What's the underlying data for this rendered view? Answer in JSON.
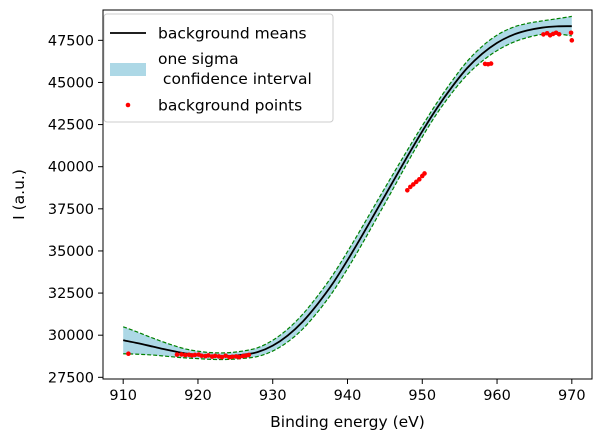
{
  "chart_data": {
    "type": "line",
    "title": "",
    "xlabel": "Binding energy (eV)",
    "ylabel": "I (a.u.)",
    "xlim": [
      907.3,
      972.7
    ],
    "ylim": [
      27400,
      49300
    ],
    "xticks": [
      910,
      920,
      930,
      940,
      950,
      960,
      970
    ],
    "yticks": [
      27500,
      30000,
      32500,
      35000,
      37500,
      40000,
      42500,
      45000,
      47500
    ],
    "grid": false,
    "legend_position": "top-left",
    "legend": {
      "mean_label": "background means",
      "band_label_line1": "one sigma",
      "band_label_line2": " confidence interval",
      "points_label": "background points"
    },
    "colors": {
      "mean": "#000000",
      "band": "#add8e6",
      "band_edge": "#008000",
      "points": "#ff0000"
    },
    "series": [
      {
        "name": "background means",
        "x": [
          910,
          912,
          914,
          916,
          918,
          920,
          922,
          924,
          926,
          928,
          930,
          932,
          934,
          936,
          938,
          940,
          942,
          944,
          946,
          948,
          950,
          952,
          954,
          956,
          958,
          960,
          962,
          964,
          966,
          968,
          970
        ],
        "values": [
          29700,
          29520,
          29320,
          29120,
          28940,
          28830,
          28760,
          28760,
          28840,
          29000,
          29380,
          29980,
          30800,
          31850,
          33050,
          34450,
          35950,
          37500,
          39050,
          40600,
          42100,
          43500,
          44750,
          45850,
          46700,
          47350,
          47800,
          48080,
          48250,
          48330,
          48340
        ]
      },
      {
        "name": "one sigma confidence interval",
        "x": [
          910,
          912,
          914,
          916,
          918,
          920,
          922,
          924,
          926,
          928,
          930,
          932,
          934,
          936,
          938,
          940,
          942,
          944,
          946,
          948,
          950,
          952,
          954,
          956,
          958,
          960,
          962,
          964,
          966,
          968,
          970
        ],
        "sigma": [
          800,
          650,
          500,
          380,
          280,
          220,
          200,
          200,
          220,
          260,
          320,
          380,
          440,
          480,
          500,
          510,
          500,
          480,
          440,
          380,
          330,
          320,
          350,
          400,
          440,
          460,
          450,
          420,
          400,
          450,
          580
        ]
      },
      {
        "name": "background points",
        "x": [
          910.7,
          917.2,
          917.8,
          918.3,
          918.8,
          919.2,
          919.6,
          920.1,
          920.5,
          921.0,
          921.4,
          921.9,
          922.3,
          922.8,
          923.2,
          923.7,
          924.2,
          924.6,
          925.1,
          925.5,
          926.0,
          926.4,
          926.8,
          948.0,
          948.4,
          948.8,
          949.2,
          949.6,
          950.0,
          950.3,
          958.4,
          958.8,
          959.2,
          966.2,
          966.7,
          967.1,
          967.5,
          967.9,
          968.3,
          969.9,
          970.0
        ],
        "values": [
          28900,
          28850,
          28860,
          28820,
          28840,
          28800,
          28830,
          28850,
          28780,
          28760,
          28800,
          28730,
          28770,
          28740,
          28700,
          28780,
          28690,
          28720,
          28740,
          28700,
          28760,
          28790,
          28830,
          38600,
          38800,
          38950,
          39100,
          39250,
          39450,
          39600,
          46100,
          46080,
          46120,
          47850,
          47920,
          47800,
          47880,
          47950,
          47860,
          47950,
          47500
        ]
      }
    ]
  }
}
